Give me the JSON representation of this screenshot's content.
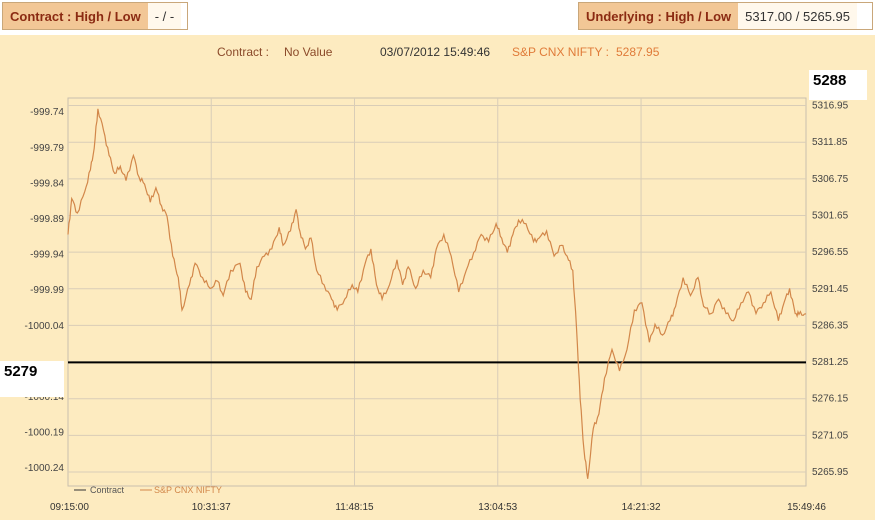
{
  "header": {
    "contract_label": "Contract : High / Low",
    "contract_value": "- / -",
    "underlying_label": "Underlying : High / Low",
    "underlying_value": "5317.00 / 5265.95"
  },
  "info": {
    "contract_label": "Contract :",
    "contract_value": "No Value",
    "datetime": "03/07/2012 15:49:46",
    "index_label": "S&P CNX NIFTY :",
    "index_value": "5287.95"
  },
  "colors": {
    "background": "#fdebc0",
    "series": "#d2874a",
    "reference_line": "#000000",
    "grid": "#d9cdb7"
  },
  "chart_data": {
    "type": "line",
    "title": "",
    "xlabel": "",
    "ylabel": "",
    "x_range": [
      "09:15:00",
      "15:49:46"
    ],
    "x_ticks": [
      "09:15:00",
      "10:31:37",
      "11:48:15",
      "13:04:53",
      "14:21:32",
      "15:49:46"
    ],
    "left_axis": {
      "range": [
        -1000.265,
        -999.72
      ],
      "ticks": [
        "-999.74",
        "-999.79",
        "-999.84",
        "-999.89",
        "-999.94",
        "-999.99",
        "-1000.04",
        "-1000.14",
        "-1000.19",
        "-1000.24"
      ]
    },
    "right_axis": {
      "range": [
        5264,
        5318
      ],
      "ticks": [
        "5316.95",
        "5311.85",
        "5306.75",
        "5301.65",
        "5296.55",
        "5291.45",
        "5286.35",
        "5281.25",
        "5276.15",
        "5271.05",
        "5265.95"
      ]
    },
    "reference_line": {
      "value": 5281.2,
      "left_label": "5279"
    },
    "last_value_label": "5288",
    "legend": [
      "Contract",
      "S&P CNX NIFTY"
    ],
    "legend_position": "bottom-left",
    "grid": true,
    "series": [
      {
        "name": "S&P CNX NIFTY",
        "axis": "right",
        "points": [
          [
            "09:15",
            5299.0
          ],
          [
            "09:17",
            5304.0
          ],
          [
            "09:20",
            5302.0
          ],
          [
            "09:24",
            5305.0
          ],
          [
            "09:27",
            5308.0
          ],
          [
            "09:29",
            5311.0
          ],
          [
            "09:31",
            5316.5
          ],
          [
            "09:34",
            5313.5
          ],
          [
            "09:37",
            5310.0
          ],
          [
            "09:40",
            5307.5
          ],
          [
            "09:43",
            5308.5
          ],
          [
            "09:46",
            5306.5
          ],
          [
            "09:50",
            5310.0
          ],
          [
            "09:53",
            5307.0
          ],
          [
            "09:56",
            5306.0
          ],
          [
            "09:59",
            5303.5
          ],
          [
            "10:02",
            5305.5
          ],
          [
            "10:05",
            5303.0
          ],
          [
            "10:08",
            5301.5
          ],
          [
            "10:11",
            5296.0
          ],
          [
            "10:14",
            5293.0
          ],
          [
            "10:16",
            5288.5
          ],
          [
            "10:20",
            5292.0
          ],
          [
            "10:23",
            5295.0
          ],
          [
            "10:27",
            5293.0
          ],
          [
            "10:31",
            5291.5
          ],
          [
            "10:35",
            5292.5
          ],
          [
            "10:38",
            5290.5
          ],
          [
            "10:42",
            5294.0
          ],
          [
            "10:47",
            5295.0
          ],
          [
            "10:50",
            5291.0
          ],
          [
            "10:53",
            5290.0
          ],
          [
            "10:56",
            5294.5
          ],
          [
            "11:00",
            5296.0
          ],
          [
            "11:04",
            5297.0
          ],
          [
            "11:08",
            5300.0
          ],
          [
            "11:10",
            5297.5
          ],
          [
            "11:14",
            5299.5
          ],
          [
            "11:17",
            5302.5
          ],
          [
            "11:19",
            5299.5
          ],
          [
            "11:22",
            5297.0
          ],
          [
            "11:25",
            5298.5
          ],
          [
            "11:28",
            5294.0
          ],
          [
            "11:32",
            5292.0
          ],
          [
            "11:36",
            5290.0
          ],
          [
            "11:39",
            5288.5
          ],
          [
            "11:43",
            5290.0
          ],
          [
            "11:47",
            5292.0
          ],
          [
            "11:50",
            5291.0
          ],
          [
            "11:54",
            5295.0
          ],
          [
            "11:57",
            5297.0
          ],
          [
            "12:00",
            5292.0
          ],
          [
            "12:03",
            5290.0
          ],
          [
            "12:07",
            5292.0
          ],
          [
            "12:11",
            5295.5
          ],
          [
            "12:14",
            5292.0
          ],
          [
            "12:17",
            5294.5
          ],
          [
            "12:21",
            5291.5
          ],
          [
            "12:25",
            5294.0
          ],
          [
            "12:29",
            5293.0
          ],
          [
            "12:32",
            5297.0
          ],
          [
            "12:36",
            5299.0
          ],
          [
            "12:40",
            5296.0
          ],
          [
            "12:44",
            5291.0
          ],
          [
            "12:48",
            5294.0
          ],
          [
            "12:52",
            5296.5
          ],
          [
            "12:56",
            5299.0
          ],
          [
            "13:00",
            5298.0
          ],
          [
            "13:04",
            5300.5
          ],
          [
            "13:07",
            5298.5
          ],
          [
            "13:10",
            5296.5
          ],
          [
            "13:13",
            5299.0
          ],
          [
            "13:16",
            5301.0
          ],
          [
            "13:20",
            5300.5
          ],
          [
            "13:24",
            5298.0
          ],
          [
            "13:27",
            5298.5
          ],
          [
            "13:31",
            5299.5
          ],
          [
            "13:35",
            5296.0
          ],
          [
            "13:39",
            5297.5
          ],
          [
            "13:42",
            5296.0
          ],
          [
            "13:45",
            5294.0
          ],
          [
            "13:47",
            5286.0
          ],
          [
            "13:49",
            5276.0
          ],
          [
            "13:51",
            5269.0
          ],
          [
            "13:53",
            5265.0
          ],
          [
            "13:56",
            5272.0
          ],
          [
            "13:59",
            5274.0
          ],
          [
            "14:02",
            5279.0
          ],
          [
            "14:06",
            5283.0
          ],
          [
            "14:10",
            5280.0
          ],
          [
            "14:14",
            5283.0
          ],
          [
            "14:18",
            5288.5
          ],
          [
            "14:22",
            5289.5
          ],
          [
            "14:26",
            5284.0
          ],
          [
            "14:29",
            5286.5
          ],
          [
            "14:33",
            5285.0
          ],
          [
            "14:37",
            5287.0
          ],
          [
            "14:40",
            5289.0
          ],
          [
            "14:44",
            5293.0
          ],
          [
            "14:48",
            5290.5
          ],
          [
            "14:52",
            5293.0
          ],
          [
            "14:55",
            5289.0
          ],
          [
            "14:59",
            5288.0
          ],
          [
            "15:03",
            5290.0
          ],
          [
            "15:07",
            5288.0
          ],
          [
            "15:11",
            5287.0
          ],
          [
            "15:15",
            5289.5
          ],
          [
            "15:19",
            5291.0
          ],
          [
            "15:23",
            5288.0
          ],
          [
            "15:27",
            5289.5
          ],
          [
            "15:31",
            5291.0
          ],
          [
            "15:35",
            5287.0
          ],
          [
            "15:38",
            5289.5
          ],
          [
            "15:41",
            5291.5
          ],
          [
            "15:44",
            5288.0
          ],
          [
            "15:46",
            5287.9
          ],
          [
            "15:49",
            5287.95
          ]
        ]
      }
    ]
  }
}
